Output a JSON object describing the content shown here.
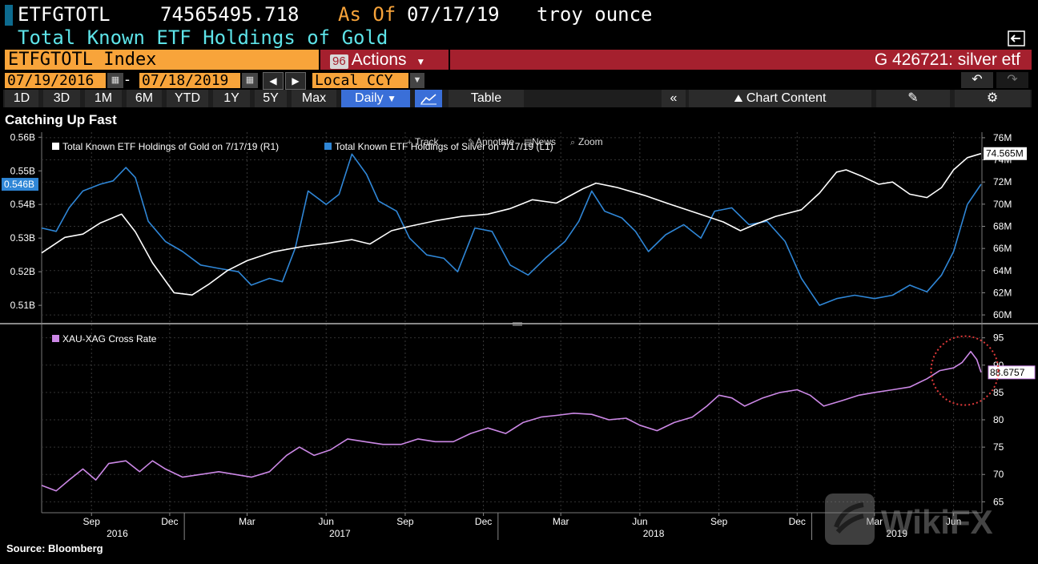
{
  "header": {
    "ticker": "ETFGTOTL",
    "value": "74565495.718",
    "as_of_label": "As Of",
    "as_of_date": "07/17/19",
    "unit": "troy ounce",
    "subtitle": "Total Known ETF Holdings of Gold"
  },
  "security_bar": {
    "index_label": "ETFGTOTL Index",
    "actions_number": "96",
    "actions_label": "Actions",
    "search_text": "G 426721: silver etf"
  },
  "date_row": {
    "start_date": "07/19/2016",
    "end_date": "07/18/2019",
    "dash": "-",
    "currency": "Local CCY"
  },
  "tabs": [
    "1D",
    "3D",
    "1M",
    "6M",
    "YTD",
    "1Y",
    "5Y",
    "Max"
  ],
  "frequency": "Daily",
  "table_button": "Table",
  "chart_content_button": "Chart Content",
  "chart_title": "Catching Up Fast",
  "toolbar_items": [
    "Track",
    "Annotate",
    "News",
    "Zoom"
  ],
  "source": "Source: Bloomberg",
  "watermark": "WikiFX",
  "colors": {
    "gold_series": "#ffffff",
    "silver_series": "#2f86d6",
    "ratio_series": "#cc88e6",
    "header_orange": "#f8a43a",
    "header_red": "#a5202e",
    "subtitle_cyan": "#5de3e8",
    "highlight_circle": "#e03a3a"
  },
  "chart_data": [
    {
      "type": "line",
      "x_range": [
        "2016-07-19",
        "2019-07-18"
      ],
      "x_tick_labels": [
        "Sep",
        "Dec",
        "Mar",
        "Jun",
        "Sep",
        "Dec",
        "Mar",
        "Jun",
        "Sep",
        "Dec",
        "Mar",
        "Jun"
      ],
      "x_year_labels": [
        "2016",
        "2017",
        "2018",
        "2019"
      ],
      "series": [
        {
          "name": "Total Known ETF Holdings of Gold on 7/17/19 (R1)",
          "axis": "right",
          "ylim": [
            59500000,
            76500000
          ],
          "y_tick_labels": [
            "60M",
            "62M",
            "64M",
            "66M",
            "68M",
            "70M",
            "72M",
            "74M",
            "76M"
          ],
          "last_value_label": "74.565M",
          "points": [
            [
              "2016-07-19",
              65.6
            ],
            [
              "2016-08-15",
              67.0
            ],
            [
              "2016-09-05",
              67.3
            ],
            [
              "2016-09-25",
              68.3
            ],
            [
              "2016-10-20",
              69.1
            ],
            [
              "2016-11-05",
              67.5
            ],
            [
              "2016-11-25",
              64.7
            ],
            [
              "2016-12-20",
              62.0
            ],
            [
              "2017-01-10",
              61.8
            ],
            [
              "2017-01-30",
              62.8
            ],
            [
              "2017-02-20",
              64.0
            ],
            [
              "2017-03-15",
              64.9
            ],
            [
              "2017-04-15",
              65.7
            ],
            [
              "2017-05-20",
              66.2
            ],
            [
              "2017-06-20",
              66.5
            ],
            [
              "2017-07-15",
              66.8
            ],
            [
              "2017-08-05",
              66.4
            ],
            [
              "2017-08-30",
              67.6
            ],
            [
              "2017-09-20",
              68.0
            ],
            [
              "2017-10-20",
              68.5
            ],
            [
              "2017-11-20",
              68.9
            ],
            [
              "2017-12-20",
              69.1
            ],
            [
              "2018-01-15",
              69.6
            ],
            [
              "2018-02-10",
              70.4
            ],
            [
              "2018-03-10",
              70.1
            ],
            [
              "2018-04-10",
              71.4
            ],
            [
              "2018-04-25",
              71.9
            ],
            [
              "2018-05-20",
              71.5
            ],
            [
              "2018-06-20",
              70.8
            ],
            [
              "2018-07-20",
              70.0
            ],
            [
              "2018-08-20",
              69.2
            ],
            [
              "2018-09-20",
              68.4
            ],
            [
              "2018-10-10",
              67.6
            ],
            [
              "2018-10-25",
              68.1
            ],
            [
              "2018-11-20",
              68.9
            ],
            [
              "2018-12-20",
              69.5
            ],
            [
              "2019-01-10",
              71.0
            ],
            [
              "2019-01-30",
              72.9
            ],
            [
              "2019-02-10",
              73.1
            ],
            [
              "2019-03-01",
              72.5
            ],
            [
              "2019-03-20",
              71.8
            ],
            [
              "2019-04-05",
              72.0
            ],
            [
              "2019-04-25",
              70.9
            ],
            [
              "2019-05-15",
              70.6
            ],
            [
              "2019-06-01",
              71.5
            ],
            [
              "2019-06-15",
              73.1
            ],
            [
              "2019-07-01",
              74.2
            ],
            [
              "2019-07-17",
              74.565
            ]
          ]
        },
        {
          "name": "Total Known ETF Holdings of Silver on 7/17/19 (L1)",
          "axis": "left",
          "ylim": [
            0.5055,
            0.5615
          ],
          "y_tick_labels": [
            "0.51B",
            "0.52B",
            "0.53B",
            "0.54B",
            "0.55B",
            "0.56B"
          ],
          "last_value_label": "0.546B",
          "points": [
            [
              "2016-07-19",
              0.533
            ],
            [
              "2016-08-05",
              0.532
            ],
            [
              "2016-08-20",
              0.539
            ],
            [
              "2016-09-05",
              0.544
            ],
            [
              "2016-09-25",
              0.546
            ],
            [
              "2016-10-10",
              0.547
            ],
            [
              "2016-10-25",
              0.551
            ],
            [
              "2016-11-05",
              0.548
            ],
            [
              "2016-11-20",
              0.535
            ],
            [
              "2016-12-10",
              0.529
            ],
            [
              "2016-12-30",
              0.526
            ],
            [
              "2017-01-20",
              0.522
            ],
            [
              "2017-02-10",
              0.521
            ],
            [
              "2017-03-05",
              0.52
            ],
            [
              "2017-03-20",
              0.516
            ],
            [
              "2017-04-10",
              0.518
            ],
            [
              "2017-04-25",
              0.517
            ],
            [
              "2017-05-10",
              0.527
            ],
            [
              "2017-05-25",
              0.544
            ],
            [
              "2017-06-15",
              0.54
            ],
            [
              "2017-06-30",
              0.543
            ],
            [
              "2017-07-15",
              0.555
            ],
            [
              "2017-08-01",
              0.549
            ],
            [
              "2017-08-15",
              0.541
            ],
            [
              "2017-09-05",
              0.538
            ],
            [
              "2017-09-20",
              0.53
            ],
            [
              "2017-10-10",
              0.525
            ],
            [
              "2017-10-30",
              0.524
            ],
            [
              "2017-11-15",
              0.52
            ],
            [
              "2017-12-05",
              0.533
            ],
            [
              "2017-12-25",
              0.532
            ],
            [
              "2018-01-15",
              0.522
            ],
            [
              "2018-02-05",
              0.519
            ],
            [
              "2018-02-25",
              0.524
            ],
            [
              "2018-03-20",
              0.529
            ],
            [
              "2018-04-05",
              0.535
            ],
            [
              "2018-04-20",
              0.544
            ],
            [
              "2018-05-05",
              0.538
            ],
            [
              "2018-05-25",
              0.536
            ],
            [
              "2018-06-10",
              0.532
            ],
            [
              "2018-06-25",
              0.526
            ],
            [
              "2018-07-15",
              0.531
            ],
            [
              "2018-08-05",
              0.534
            ],
            [
              "2018-08-25",
              0.53
            ],
            [
              "2018-09-10",
              0.538
            ],
            [
              "2018-09-30",
              0.539
            ],
            [
              "2018-10-20",
              0.534
            ],
            [
              "2018-11-10",
              0.535
            ],
            [
              "2018-12-01",
              0.529
            ],
            [
              "2018-12-20",
              0.518
            ],
            [
              "2019-01-10",
              0.51
            ],
            [
              "2019-01-30",
              0.512
            ],
            [
              "2019-02-20",
              0.513
            ],
            [
              "2019-03-15",
              0.512
            ],
            [
              "2019-04-05",
              0.513
            ],
            [
              "2019-04-25",
              0.516
            ],
            [
              "2019-05-15",
              0.514
            ],
            [
              "2019-06-01",
              0.519
            ],
            [
              "2019-06-15",
              0.526
            ],
            [
              "2019-07-01",
              0.54
            ],
            [
              "2019-07-17",
              0.546
            ]
          ]
        }
      ]
    },
    {
      "type": "line",
      "x_range": [
        "2016-07-19",
        "2019-07-18"
      ],
      "ylim": [
        63,
        97
      ],
      "y_tick_labels": [
        "65",
        "70",
        "75",
        "80",
        "85",
        "90",
        "95"
      ],
      "series": [
        {
          "name": "XAU-XAG Cross Rate",
          "last_value_label": "88.6757",
          "points": [
            [
              "2016-07-19",
              68.0
            ],
            [
              "2016-08-05",
              67.0
            ],
            [
              "2016-08-20",
              69.0
            ],
            [
              "2016-09-05",
              71.0
            ],
            [
              "2016-09-20",
              69.0
            ],
            [
              "2016-10-05",
              72.0
            ],
            [
              "2016-10-25",
              72.5
            ],
            [
              "2016-11-10",
              70.5
            ],
            [
              "2016-11-25",
              72.5
            ],
            [
              "2016-12-10",
              71.0
            ],
            [
              "2016-12-30",
              69.5
            ],
            [
              "2017-01-20",
              70.0
            ],
            [
              "2017-02-10",
              70.5
            ],
            [
              "2017-03-01",
              70.0
            ],
            [
              "2017-03-20",
              69.5
            ],
            [
              "2017-04-10",
              70.5
            ],
            [
              "2017-04-30",
              73.5
            ],
            [
              "2017-05-15",
              75.0
            ],
            [
              "2017-06-01",
              73.5
            ],
            [
              "2017-06-20",
              74.5
            ],
            [
              "2017-07-10",
              76.5
            ],
            [
              "2017-07-30",
              76.0
            ],
            [
              "2017-08-20",
              75.5
            ],
            [
              "2017-09-10",
              75.5
            ],
            [
              "2017-09-30",
              76.5
            ],
            [
              "2017-10-20",
              76.0
            ],
            [
              "2017-11-10",
              76.0
            ],
            [
              "2017-11-30",
              77.5
            ],
            [
              "2017-12-20",
              78.5
            ],
            [
              "2018-01-10",
              77.5
            ],
            [
              "2018-01-30",
              79.5
            ],
            [
              "2018-02-20",
              80.5
            ],
            [
              "2018-03-10",
              80.8
            ],
            [
              "2018-03-30",
              81.2
            ],
            [
              "2018-04-20",
              81.0
            ],
            [
              "2018-05-10",
              80.0
            ],
            [
              "2018-05-30",
              80.3
            ],
            [
              "2018-06-15",
              79.0
            ],
            [
              "2018-07-05",
              78.0
            ],
            [
              "2018-07-25",
              79.5
            ],
            [
              "2018-08-15",
              80.5
            ],
            [
              "2018-09-01",
              82.5
            ],
            [
              "2018-09-15",
              84.5
            ],
            [
              "2018-09-30",
              84.0
            ],
            [
              "2018-10-15",
              82.5
            ],
            [
              "2018-11-05",
              84.0
            ],
            [
              "2018-11-25",
              85.0
            ],
            [
              "2018-12-15",
              85.5
            ],
            [
              "2018-12-30",
              84.5
            ],
            [
              "2019-01-15",
              82.5
            ],
            [
              "2019-02-05",
              83.5
            ],
            [
              "2019-02-25",
              84.5
            ],
            [
              "2019-03-15",
              85.0
            ],
            [
              "2019-04-05",
              85.5
            ],
            [
              "2019-04-25",
              86.0
            ],
            [
              "2019-05-15",
              87.5
            ],
            [
              "2019-05-30",
              89.0
            ],
            [
              "2019-06-15",
              89.5
            ],
            [
              "2019-06-25",
              90.5
            ],
            [
              "2019-07-05",
              92.5
            ],
            [
              "2019-07-12",
              91.0
            ],
            [
              "2019-07-17",
              88.6757
            ]
          ]
        }
      ]
    }
  ]
}
